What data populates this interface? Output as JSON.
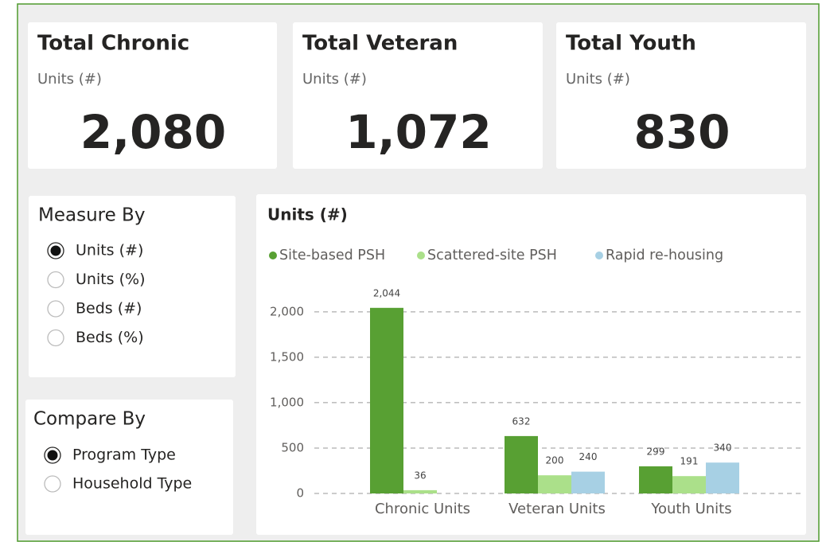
{
  "cards": [
    {
      "title": "Total Chronic",
      "subtitle": "Units (#)",
      "value": "2,080"
    },
    {
      "title": "Total Veteran",
      "subtitle": "Units (#)",
      "value": "1,072"
    },
    {
      "title": "Total Youth",
      "subtitle": "Units (#)",
      "value": "830"
    }
  ],
  "slicers": [
    {
      "title": "Measure By",
      "options": [
        {
          "label": "Units (#)",
          "selected": true
        },
        {
          "label": "Units (%)",
          "selected": false
        },
        {
          "label": "Beds (#)",
          "selected": false
        },
        {
          "label": "Beds (%)",
          "selected": false
        }
      ]
    },
    {
      "title": "Compare By",
      "options": [
        {
          "label": "Program Type",
          "selected": true
        },
        {
          "label": "Household Type",
          "selected": false
        }
      ]
    }
  ],
  "chart_data": {
    "type": "bar",
    "title": "Units (#)",
    "categories": [
      "Chronic Units",
      "Veteran Units",
      "Youth Units"
    ],
    "series": [
      {
        "name": "Site-based PSH",
        "color": "#58a033",
        "values": [
          2044,
          632,
          299
        ],
        "value_labels": [
          "2,044",
          "632",
          "299"
        ]
      },
      {
        "name": "Scattered-site PSH",
        "color": "#abe08a",
        "values": [
          36,
          200,
          191
        ]
      },
      {
        "name": "Rapid re-housing",
        "color": "#a7d0e4",
        "values": [
          null,
          240,
          340
        ]
      }
    ],
    "ylim": [
      0,
      2200
    ],
    "yticks": [
      0,
      500,
      {
        "value": 1000,
        "label": "1,000"
      },
      {
        "value": 1500,
        "label": "1,500"
      },
      {
        "value": 2000,
        "label": "2,000"
      }
    ],
    "grid": true,
    "legend": "top"
  }
}
